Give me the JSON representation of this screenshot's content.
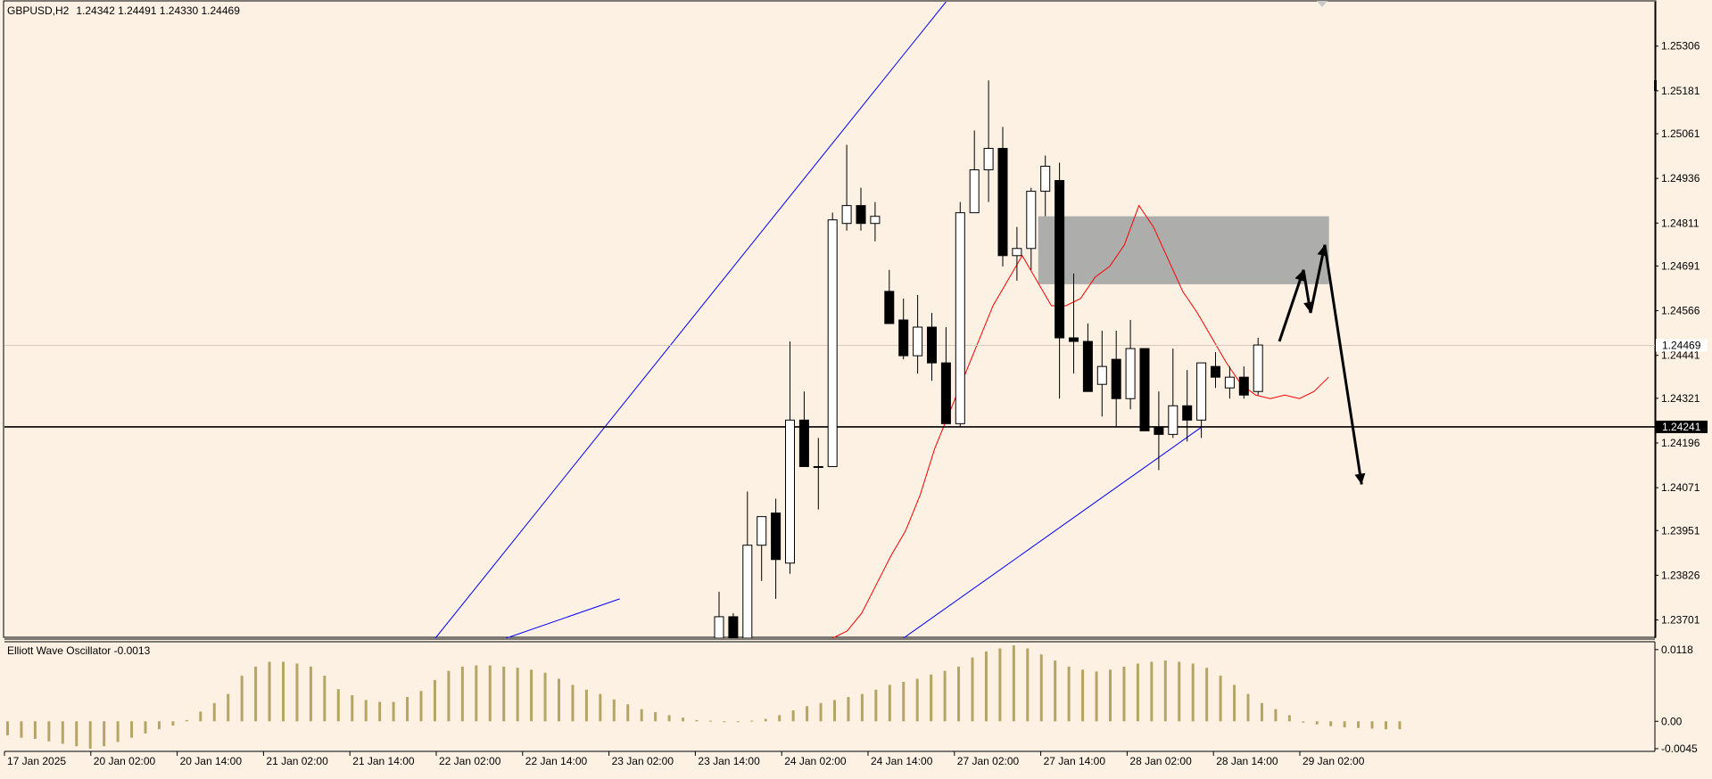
{
  "header": {
    "symbol": "GBPUSD,H2",
    "ohlc": "1.24342 1.24491 1.24330 1.24469"
  },
  "oscillator": {
    "label": "Elliott Wave Oscillator -0.0013"
  },
  "colors": {
    "background": "#fdf1e4",
    "bull_body": "#ffffff",
    "bear_body": "#000000",
    "trendline": "#0000ff",
    "moving_average": "#ff0000",
    "oscillator_bars": "#b5a565",
    "zone": "#a9a9a9"
  },
  "chart_data": [
    {
      "type": "candlestick",
      "title": "",
      "y_axis_ticks": [
        "1.25306",
        "1.25181",
        "1.25061",
        "1.24936",
        "1.24811",
        "1.24691",
        "1.24566",
        "1.24441",
        "1.24321",
        "1.24196",
        "1.24071",
        "1.23951",
        "1.23826",
        "1.23701"
      ],
      "x_axis_ticks": [
        "17 Jan 2025",
        "20 Jan 02:00",
        "20 Jan 14:00",
        "21 Jan 02:00",
        "21 Jan 14:00",
        "22 Jan 02:00",
        "22 Jan 14:00",
        "23 Jan 02:00",
        "23 Jan 14:00",
        "24 Jan 02:00",
        "24 Jan 14:00",
        "27 Jan 02:00",
        "27 Jan 14:00",
        "28 Jan 02:00",
        "28 Jan 14:00",
        "29 Jan 02:00"
      ],
      "ylim": [
        1.2365,
        1.2543
      ],
      "price_labels": [
        {
          "text": "1.24469",
          "value": 1.24469,
          "style": "current-price"
        },
        {
          "text": "1.24241",
          "value": 1.24241,
          "style": "horizontal-level"
        }
      ],
      "horizontal_level": 1.24241,
      "candles": [
        {
          "t": "23 Jan 14:00",
          "o": 1.2365,
          "h": 1.2378,
          "l": 1.2365,
          "c": 1.2371
        },
        {
          "t": "23 Jan 16:00",
          "o": 1.2371,
          "h": 1.2372,
          "l": 1.2365,
          "c": 1.2365
        },
        {
          "t": "24 Jan 02:00",
          "o": 1.2365,
          "h": 1.2406,
          "l": 1.2365,
          "c": 1.2391
        },
        {
          "t": "24 Jan 04:00",
          "o": 1.2391,
          "h": 1.2399,
          "l": 1.2381,
          "c": 1.2399
        },
        {
          "t": "24 Jan 06:00",
          "o": 1.24,
          "h": 1.2404,
          "l": 1.2376,
          "c": 1.2387
        },
        {
          "t": "24 Jan 08:00",
          "o": 1.2386,
          "h": 1.2448,
          "l": 1.2383,
          "c": 1.2426
        },
        {
          "t": "24 Jan 10:00",
          "o": 1.2426,
          "h": 1.2434,
          "l": 1.2413,
          "c": 1.2413
        },
        {
          "t": "24 Jan 12:00",
          "o": 1.2413,
          "h": 1.2421,
          "l": 1.2401,
          "c": 1.2413
        },
        {
          "t": "24 Jan 14:00",
          "o": 1.2413,
          "h": 1.2484,
          "l": 1.2413,
          "c": 1.2482
        },
        {
          "t": "24 Jan 16:00",
          "o": 1.2481,
          "h": 1.2503,
          "l": 1.2479,
          "c": 1.2486
        },
        {
          "t": "24 Jan 18:00",
          "o": 1.2486,
          "h": 1.2491,
          "l": 1.2479,
          "c": 1.2481
        },
        {
          "t": "24 Jan 20:00",
          "o": 1.2481,
          "h": 1.2487,
          "l": 1.2476,
          "c": 1.2483
        },
        {
          "t": "27 Jan 00:00",
          "o": 1.2462,
          "h": 1.2468,
          "l": 1.2453,
          "c": 1.2453
        },
        {
          "t": "27 Jan 02:00",
          "o": 1.2454,
          "h": 1.246,
          "l": 1.2443,
          "c": 1.2444
        },
        {
          "t": "27 Jan 04:00",
          "o": 1.2444,
          "h": 1.2461,
          "l": 1.2439,
          "c": 1.2452
        },
        {
          "t": "27 Jan 06:00",
          "o": 1.2452,
          "h": 1.2456,
          "l": 1.2437,
          "c": 1.2442
        },
        {
          "t": "27 Jan 08:00",
          "o": 1.2442,
          "h": 1.2452,
          "l": 1.2425,
          "c": 1.2425
        },
        {
          "t": "27 Jan 10:00",
          "o": 1.2425,
          "h": 1.2487,
          "l": 1.2424,
          "c": 1.2484
        },
        {
          "t": "27 Jan 12:00",
          "o": 1.2484,
          "h": 1.2507,
          "l": 1.2484,
          "c": 1.2496
        },
        {
          "t": "27 Jan 14:00",
          "o": 1.2496,
          "h": 1.2521,
          "l": 1.2487,
          "c": 1.2502
        },
        {
          "t": "27 Jan 16:00",
          "o": 1.2502,
          "h": 1.2508,
          "l": 1.2469,
          "c": 1.2472
        },
        {
          "t": "27 Jan 18:00",
          "o": 1.2472,
          "h": 1.248,
          "l": 1.2465,
          "c": 1.2474
        },
        {
          "t": "27 Jan 20:00",
          "o": 1.2474,
          "h": 1.2491,
          "l": 1.2468,
          "c": 1.249
        },
        {
          "t": "27 Jan 22:00",
          "o": 1.249,
          "h": 1.25,
          "l": 1.2483,
          "c": 1.2497
        },
        {
          "t": "28 Jan 00:00",
          "o": 1.2493,
          "h": 1.2498,
          "l": 1.2432,
          "c": 1.2449
        },
        {
          "t": "28 Jan 02:00",
          "o": 1.2449,
          "h": 1.2467,
          "l": 1.2439,
          "c": 1.2448
        },
        {
          "t": "28 Jan 04:00",
          "o": 1.2448,
          "h": 1.2453,
          "l": 1.2434,
          "c": 1.2434
        },
        {
          "t": "28 Jan 06:00",
          "o": 1.2436,
          "h": 1.2451,
          "l": 1.2427,
          "c": 1.2441
        },
        {
          "t": "28 Jan 08:00",
          "o": 1.2443,
          "h": 1.2451,
          "l": 1.2424,
          "c": 1.2432
        },
        {
          "t": "28 Jan 10:00",
          "o": 1.2432,
          "h": 1.2454,
          "l": 1.2429,
          "c": 1.2446
        },
        {
          "t": "28 Jan 12:00",
          "o": 1.2446,
          "h": 1.2446,
          "l": 1.2423,
          "c": 1.2423
        },
        {
          "t": "28 Jan 14:00",
          "o": 1.2424,
          "h": 1.2434,
          "l": 1.2412,
          "c": 1.2422
        },
        {
          "t": "28 Jan 16:00",
          "o": 1.2422,
          "h": 1.2446,
          "l": 1.2421,
          "c": 1.243
        },
        {
          "t": "28 Jan 18:00",
          "o": 1.243,
          "h": 1.244,
          "l": 1.242,
          "c": 1.2426
        },
        {
          "t": "28 Jan 20:00",
          "o": 1.2426,
          "h": 1.2441,
          "l": 1.2421,
          "c": 1.2442
        },
        {
          "t": "28 Jan 22:00",
          "o": 1.2441,
          "h": 1.2445,
          "l": 1.2435,
          "c": 1.2438
        },
        {
          "t": "29 Jan 00:00",
          "o": 1.2435,
          "h": 1.2441,
          "l": 1.2432,
          "c": 1.2438
        },
        {
          "t": "29 Jan 02:00",
          "o": 1.2438,
          "h": 1.2441,
          "l": 1.2432,
          "c": 1.2433
        },
        {
          "t": "29 Jan 04:00",
          "o": 1.2434,
          "h": 1.2449,
          "l": 1.2433,
          "c": 1.2447
        }
      ],
      "moving_average": [
        1.2365,
        1.2367,
        1.2372,
        1.238,
        1.2388,
        1.2395,
        1.2405,
        1.2418,
        1.2428,
        1.2438,
        1.2448,
        1.2458,
        1.2465,
        1.2472,
        1.2465,
        1.2458,
        1.2458,
        1.246,
        1.2466,
        1.2469,
        1.2475,
        1.2486,
        1.248,
        1.2471,
        1.2462,
        1.2456,
        1.2449,
        1.2442,
        1.2436,
        1.2433,
        1.2432,
        1.2433,
        1.2432,
        1.2434,
        1.2438
      ],
      "ma_start_index": 8,
      "trendlines": [
        {
          "from": {
            "i": -20,
            "p": 1.2365
          },
          "to": {
            "i": 16,
            "p": 1.2543
          }
        },
        {
          "from": {
            "i": -15,
            "p": 1.2365
          },
          "to": {
            "i": -7,
            "p": 1.2376
          }
        },
        {
          "from": {
            "i": 13,
            "p": 1.2365
          },
          "to": {
            "i": 34,
            "p": 1.2424
          }
        }
      ],
      "zone": {
        "from_i": 22.5,
        "to_i": 43,
        "low": 1.2464,
        "high": 1.2483
      },
      "projection_path": [
        {
          "i": 39.5,
          "p": 1.2448
        },
        {
          "i": 41.2,
          "p": 1.2468
        },
        {
          "i": 41.7,
          "p": 1.2456
        },
        {
          "i": 42.7,
          "p": 1.2475
        },
        {
          "i": 45.3,
          "p": 1.2408
        }
      ]
    },
    {
      "type": "bar",
      "title": "Elliott Wave Oscillator -0.0013",
      "y_axis_ticks": [
        "0.0118",
        "0.00",
        "-0.0045"
      ],
      "ylim": [
        -0.0048,
        0.0128
      ],
      "values": [
        -0.0023,
        -0.0027,
        -0.0029,
        -0.0033,
        -0.0037,
        -0.0041,
        -0.0045,
        -0.0041,
        -0.0034,
        -0.0027,
        -0.002,
        -0.0013,
        -0.0007,
        0.0002,
        0.0016,
        0.003,
        0.0045,
        0.0075,
        0.009,
        0.0098,
        0.0098,
        0.0095,
        0.009,
        0.0075,
        0.0053,
        0.0043,
        0.0035,
        0.0032,
        0.0032,
        0.004,
        0.005,
        0.0068,
        0.0083,
        0.009,
        0.0092,
        0.0092,
        0.009,
        0.0088,
        0.0085,
        0.008,
        0.007,
        0.006,
        0.0052,
        0.0045,
        0.0036,
        0.0028,
        0.002,
        0.0015,
        0.001,
        0.0006,
        0.0002,
        0.0001,
        0.0,
        0.0,
        0.0001,
        0.0004,
        0.001,
        0.0018,
        0.0025,
        0.003,
        0.0035,
        0.004,
        0.0045,
        0.0052,
        0.006,
        0.0065,
        0.007,
        0.0077,
        0.0083,
        0.009,
        0.0105,
        0.0115,
        0.012,
        0.0125,
        0.012,
        0.011,
        0.01,
        0.009,
        0.0085,
        0.0082,
        0.0085,
        0.009,
        0.0095,
        0.0098,
        0.01,
        0.0098,
        0.0095,
        0.0088,
        0.0075,
        0.006,
        0.0045,
        0.003,
        0.002,
        0.001,
        -0.0002,
        -0.0005,
        -0.0008,
        -0.001,
        -0.0011,
        -0.0012,
        -0.0013,
        -0.0013
      ]
    }
  ]
}
